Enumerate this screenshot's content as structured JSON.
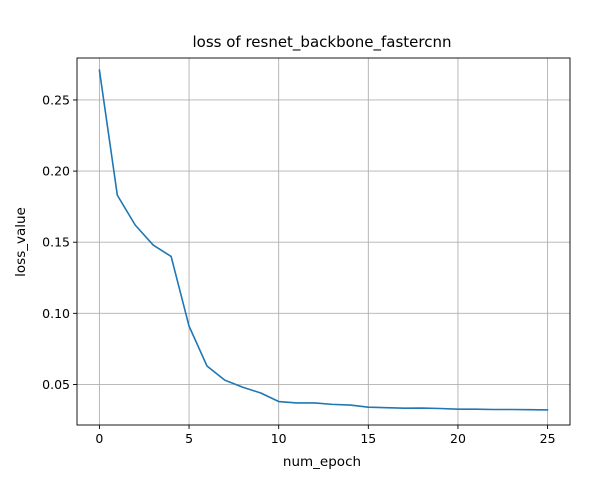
{
  "chart_data": {
    "type": "line",
    "title": "loss of resnet_backbone_fastercnn",
    "xlabel": "num_epoch",
    "ylabel": "loss_value",
    "xlim": [
      -1.25,
      26.25
    ],
    "ylim": [
      0.0215,
      0.2795
    ],
    "xticks": [
      0,
      5,
      10,
      15,
      20,
      25
    ],
    "xtick_labels": [
      "0",
      "5",
      "10",
      "15",
      "20",
      "25"
    ],
    "yticks": [
      0.05,
      0.1,
      0.15,
      0.2,
      0.25
    ],
    "ytick_labels": [
      "0.05",
      "0.10",
      "0.15",
      "0.20",
      "0.25"
    ],
    "grid": true,
    "series": [
      {
        "color": "#1f77b4",
        "x": [
          0,
          1,
          2,
          3,
          4,
          5,
          6,
          7,
          8,
          9,
          10,
          11,
          12,
          13,
          14,
          15,
          16,
          17,
          18,
          19,
          20,
          21,
          22,
          23,
          24,
          25
        ],
        "y": [
          0.271,
          0.183,
          0.162,
          0.148,
          0.14,
          0.091,
          0.063,
          0.053,
          0.048,
          0.044,
          0.038,
          0.037,
          0.037,
          0.036,
          0.0355,
          0.034,
          0.0337,
          0.0333,
          0.0334,
          0.0331,
          0.0326,
          0.0326,
          0.0324,
          0.0324,
          0.0323,
          0.0321
        ]
      }
    ]
  }
}
